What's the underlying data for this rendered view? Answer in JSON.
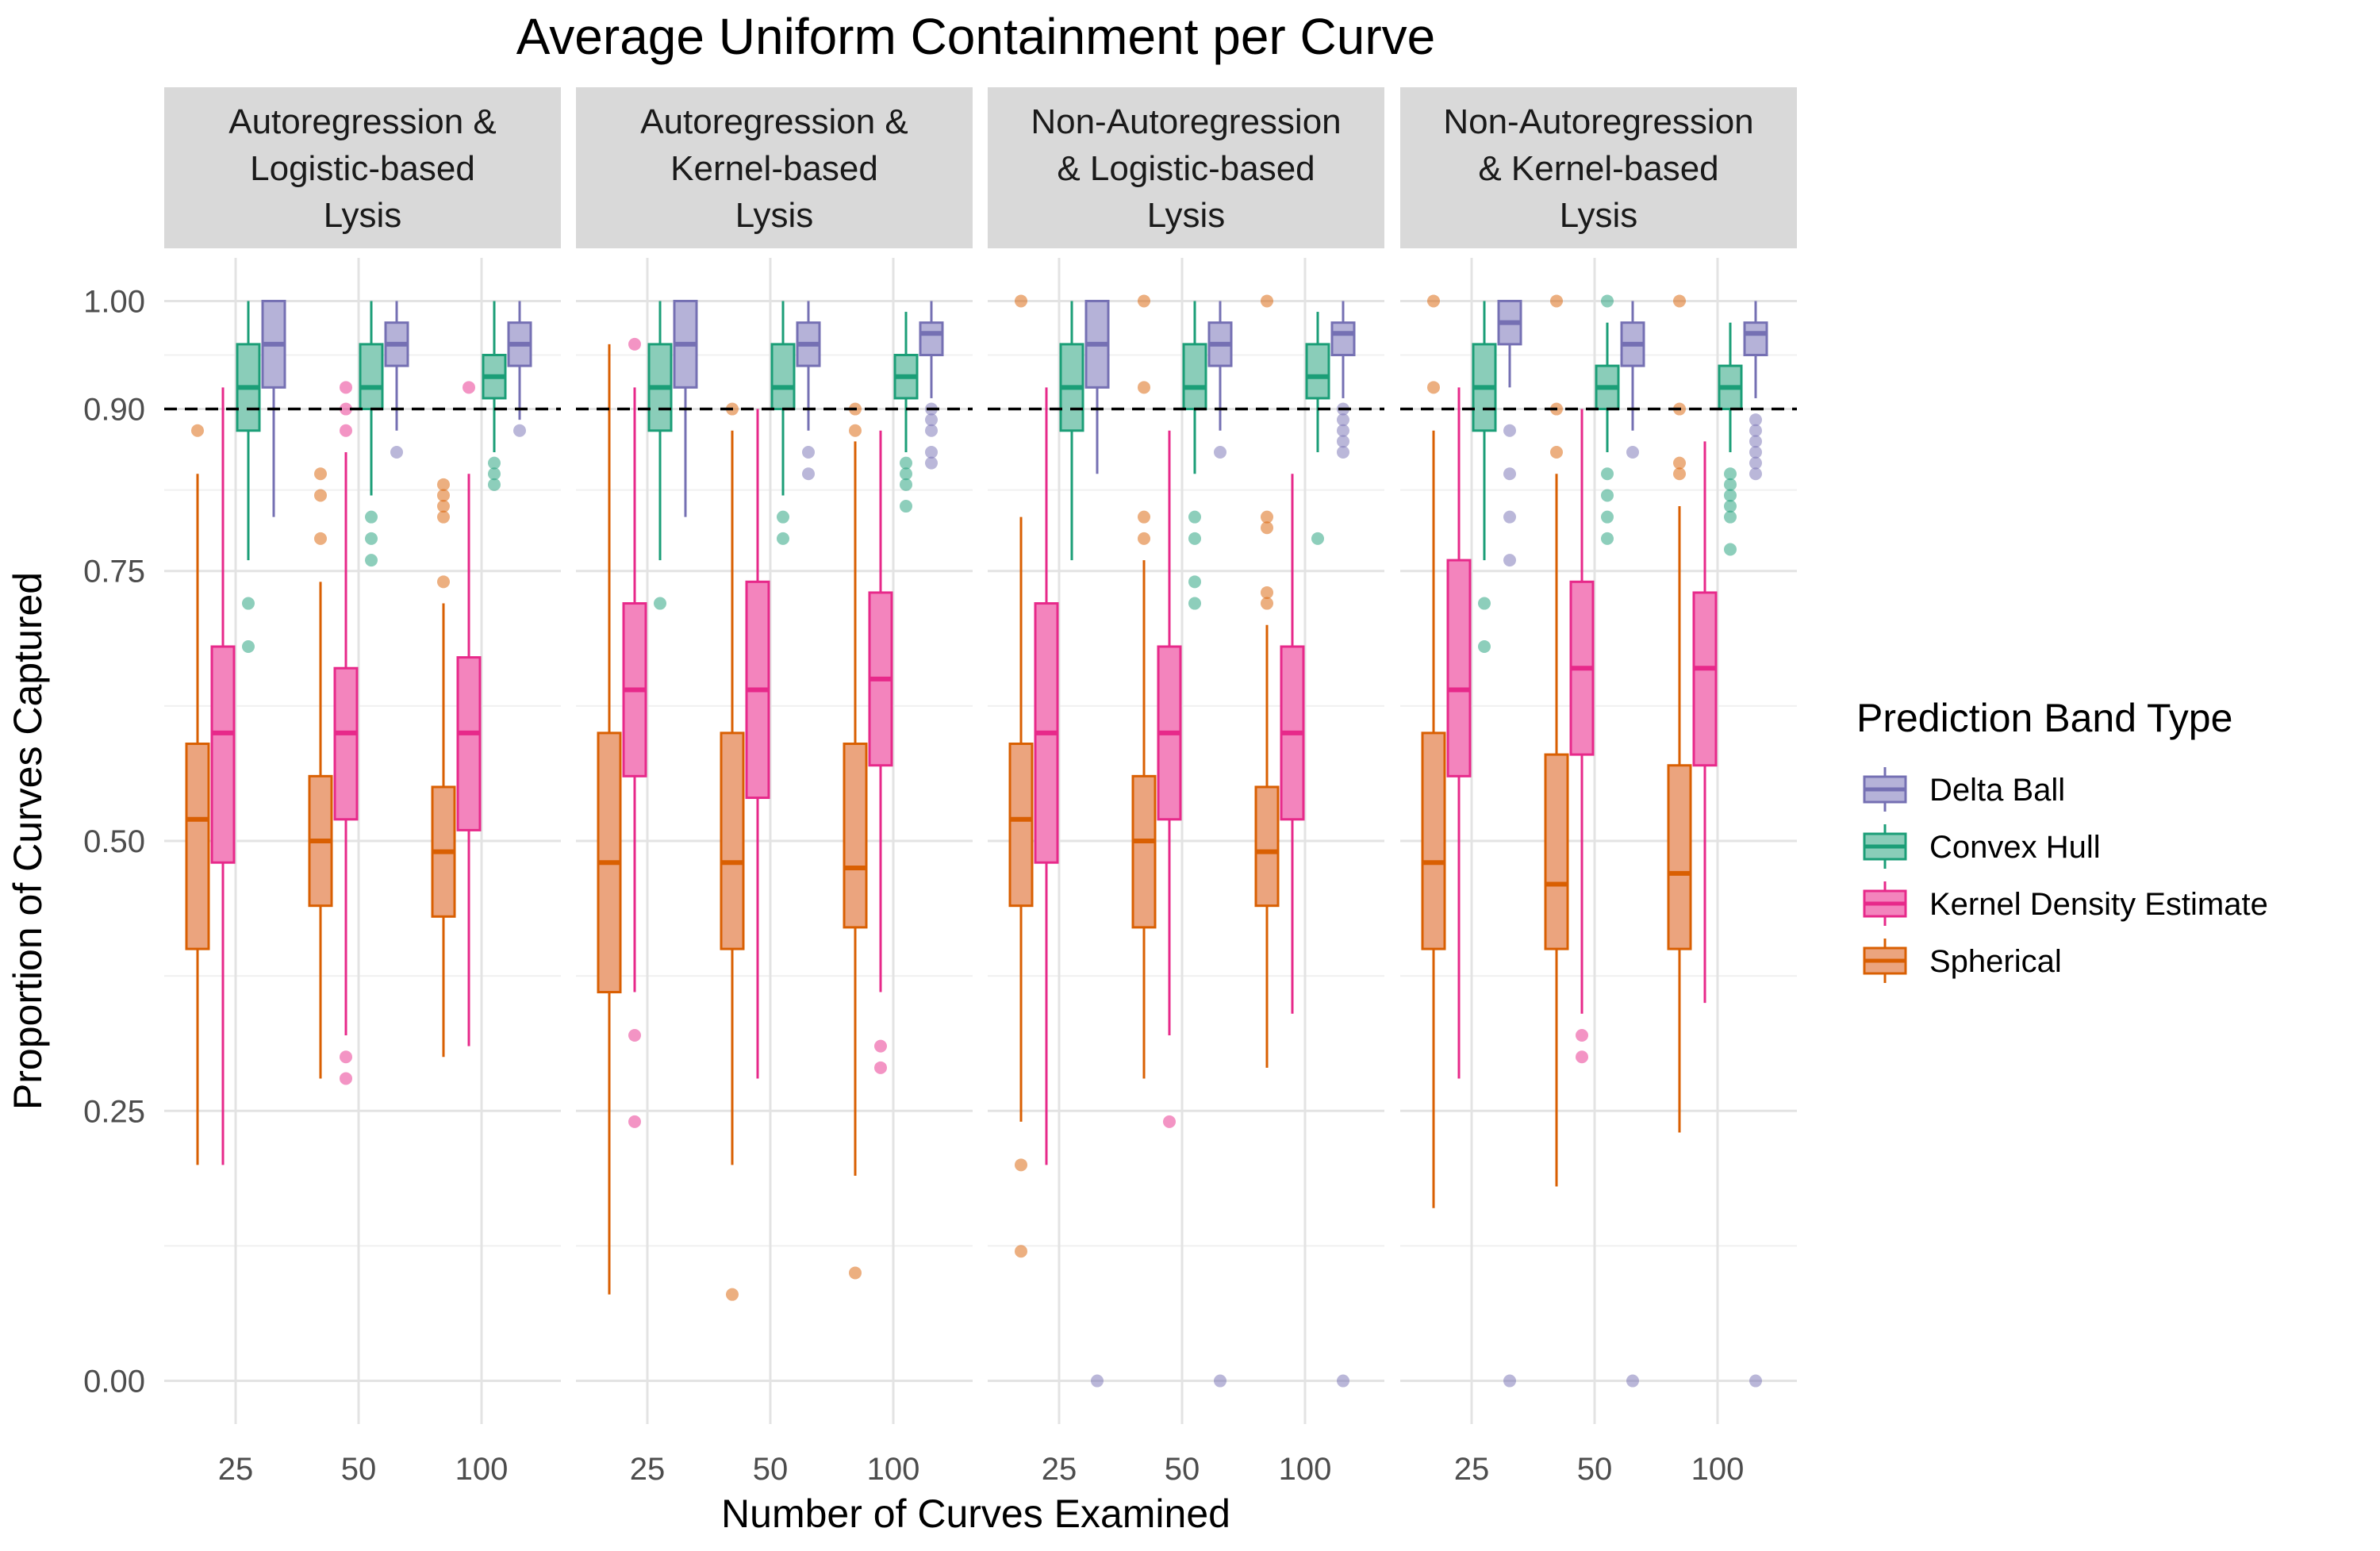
{
  "chart_data": {
    "type": "box",
    "title": "Average Uniform Containment per Curve",
    "xlabel": "Number of Curves Examined",
    "ylabel": "Proportion of Curves Captured",
    "ylim": [
      -0.04,
      1.04
    ],
    "y_ticks": [
      "0.00",
      "0.25",
      "0.50",
      "0.75",
      "0.90",
      "1.00"
    ],
    "x_categories": [
      "25",
      "50",
      "100"
    ],
    "reference_line": {
      "value": 0.9,
      "style": "dashed"
    },
    "legend": {
      "title": "Prediction Band Type",
      "placement": "right",
      "items": [
        "Delta Ball",
        "Convex Hull",
        "Kernel Density Estimate",
        "Spherical"
      ]
    },
    "series": [
      {
        "name": "Spherical",
        "color": "#D95F02",
        "fill": "#EBA47E"
      },
      {
        "name": "Kernel Density Estimate",
        "color": "#E7298A",
        "fill": "#F384BD"
      },
      {
        "name": "Convex Hull",
        "color": "#1B9E77",
        "fill": "#8ACDB9"
      },
      {
        "name": "Delta Ball",
        "color": "#7570B3",
        "fill": "#B5B2D8"
      }
    ],
    "facets": [
      {
        "label_lines": [
          "Autoregression &",
          "Logistic-based",
          "Lysis"
        ],
        "groups": [
          {
            "x": "25",
            "boxes": [
              {
                "series": "Spherical",
                "min": 0.2,
                "q1": 0.4,
                "median": 0.52,
                "q3": 0.59,
                "max": 0.84,
                "outliers": [
                  0.88
                ]
              },
              {
                "series": "Kernel Density Estimate",
                "min": 0.2,
                "q1": 0.48,
                "median": 0.6,
                "q3": 0.68,
                "max": 0.92,
                "outliers": []
              },
              {
                "series": "Convex Hull",
                "min": 0.76,
                "q1": 0.88,
                "median": 0.92,
                "q3": 0.96,
                "max": 1.0,
                "outliers": [
                  0.72,
                  0.68
                ]
              },
              {
                "series": "Delta Ball",
                "min": 0.8,
                "q1": 0.92,
                "median": 0.96,
                "q3": 1.0,
                "max": 1.0,
                "outliers": []
              }
            ]
          },
          {
            "x": "50",
            "boxes": [
              {
                "series": "Spherical",
                "min": 0.28,
                "q1": 0.44,
                "median": 0.5,
                "q3": 0.56,
                "max": 0.74,
                "outliers": [
                  0.84,
                  0.82,
                  0.78
                ]
              },
              {
                "series": "Kernel Density Estimate",
                "min": 0.32,
                "q1": 0.52,
                "median": 0.6,
                "q3": 0.66,
                "max": 0.86,
                "outliers": [
                  0.92,
                  0.9,
                  0.88,
                  0.3,
                  0.28
                ]
              },
              {
                "series": "Convex Hull",
                "min": 0.82,
                "q1": 0.9,
                "median": 0.92,
                "q3": 0.96,
                "max": 1.0,
                "outliers": [
                  0.8,
                  0.78,
                  0.76
                ]
              },
              {
                "series": "Delta Ball",
                "min": 0.88,
                "q1": 0.94,
                "median": 0.96,
                "q3": 0.98,
                "max": 1.0,
                "outliers": [
                  0.86
                ]
              }
            ]
          },
          {
            "x": "100",
            "boxes": [
              {
                "series": "Spherical",
                "min": 0.3,
                "q1": 0.43,
                "median": 0.49,
                "q3": 0.55,
                "max": 0.72,
                "outliers": [
                  0.83,
                  0.82,
                  0.81,
                  0.8,
                  0.74
                ]
              },
              {
                "series": "Kernel Density Estimate",
                "min": 0.31,
                "q1": 0.51,
                "median": 0.6,
                "q3": 0.67,
                "max": 0.84,
                "outliers": [
                  0.92
                ]
              },
              {
                "series": "Convex Hull",
                "min": 0.86,
                "q1": 0.91,
                "median": 0.93,
                "q3": 0.95,
                "max": 1.0,
                "outliers": [
                  0.85,
                  0.84,
                  0.83
                ]
              },
              {
                "series": "Delta Ball",
                "min": 0.89,
                "q1": 0.94,
                "median": 0.96,
                "q3": 0.98,
                "max": 1.0,
                "outliers": [
                  0.88
                ]
              }
            ]
          }
        ]
      },
      {
        "label_lines": [
          "Autoregression &",
          "Kernel-based",
          "Lysis"
        ],
        "groups": [
          {
            "x": "25",
            "boxes": [
              {
                "series": "Spherical",
                "min": 0.08,
                "q1": 0.36,
                "median": 0.48,
                "q3": 0.6,
                "max": 0.96,
                "outliers": []
              },
              {
                "series": "Kernel Density Estimate",
                "min": 0.36,
                "q1": 0.56,
                "median": 0.64,
                "q3": 0.72,
                "max": 0.92,
                "outliers": [
                  0.96,
                  0.32,
                  0.24
                ]
              },
              {
                "series": "Convex Hull",
                "min": 0.76,
                "q1": 0.88,
                "median": 0.92,
                "q3": 0.96,
                "max": 1.0,
                "outliers": [
                  0.72
                ]
              },
              {
                "series": "Delta Ball",
                "min": 0.8,
                "q1": 0.92,
                "median": 0.96,
                "q3": 1.0,
                "max": 1.0,
                "outliers": []
              }
            ]
          },
          {
            "x": "50",
            "boxes": [
              {
                "series": "Spherical",
                "min": 0.2,
                "q1": 0.4,
                "median": 0.48,
                "q3": 0.6,
                "max": 0.88,
                "outliers": [
                  0.9,
                  0.08
                ]
              },
              {
                "series": "Kernel Density Estimate",
                "min": 0.28,
                "q1": 0.54,
                "median": 0.64,
                "q3": 0.74,
                "max": 0.9,
                "outliers": []
              },
              {
                "series": "Convex Hull",
                "min": 0.82,
                "q1": 0.9,
                "median": 0.92,
                "q3": 0.96,
                "max": 1.0,
                "outliers": [
                  0.8,
                  0.78
                ]
              },
              {
                "series": "Delta Ball",
                "min": 0.88,
                "q1": 0.94,
                "median": 0.96,
                "q3": 0.98,
                "max": 1.0,
                "outliers": [
                  0.86,
                  0.84
                ]
              }
            ]
          },
          {
            "x": "100",
            "boxes": [
              {
                "series": "Spherical",
                "min": 0.19,
                "q1": 0.42,
                "median": 0.475,
                "q3": 0.59,
                "max": 0.87,
                "outliers": [
                  0.9,
                  0.88,
                  0.1
                ]
              },
              {
                "series": "Kernel Density Estimate",
                "min": 0.36,
                "q1": 0.57,
                "median": 0.65,
                "q3": 0.73,
                "max": 0.88,
                "outliers": [
                  0.31,
                  0.29
                ]
              },
              {
                "series": "Convex Hull",
                "min": 0.86,
                "q1": 0.91,
                "median": 0.93,
                "q3": 0.95,
                "max": 0.99,
                "outliers": [
                  0.85,
                  0.84,
                  0.83,
                  0.81
                ]
              },
              {
                "series": "Delta Ball",
                "min": 0.91,
                "q1": 0.95,
                "median": 0.97,
                "q3": 0.98,
                "max": 1.0,
                "outliers": [
                  0.9,
                  0.89,
                  0.88,
                  0.86,
                  0.85
                ]
              }
            ]
          }
        ]
      },
      {
        "label_lines": [
          "Non-Autoregression",
          "& Logistic-based",
          "Lysis"
        ],
        "groups": [
          {
            "x": "25",
            "boxes": [
              {
                "series": "Spherical",
                "min": 0.24,
                "q1": 0.44,
                "median": 0.52,
                "q3": 0.59,
                "max": 0.8,
                "outliers": [
                  1.0,
                  0.2,
                  0.12
                ]
              },
              {
                "series": "Kernel Density Estimate",
                "min": 0.2,
                "q1": 0.48,
                "median": 0.6,
                "q3": 0.72,
                "max": 0.92,
                "outliers": []
              },
              {
                "series": "Convex Hull",
                "min": 0.76,
                "q1": 0.88,
                "median": 0.92,
                "q3": 0.96,
                "max": 1.0,
                "outliers": []
              },
              {
                "series": "Delta Ball",
                "min": 0.84,
                "q1": 0.92,
                "median": 0.96,
                "q3": 1.0,
                "max": 1.0,
                "outliers": [
                  0.0
                ]
              }
            ]
          },
          {
            "x": "50",
            "boxes": [
              {
                "series": "Spherical",
                "min": 0.28,
                "q1": 0.42,
                "median": 0.5,
                "q3": 0.56,
                "max": 0.76,
                "outliers": [
                  1.0,
                  0.92,
                  0.8,
                  0.78
                ]
              },
              {
                "series": "Kernel Density Estimate",
                "min": 0.32,
                "q1": 0.52,
                "median": 0.6,
                "q3": 0.68,
                "max": 0.88,
                "outliers": [
                  0.24
                ]
              },
              {
                "series": "Convex Hull",
                "min": 0.84,
                "q1": 0.9,
                "median": 0.92,
                "q3": 0.96,
                "max": 1.0,
                "outliers": [
                  0.8,
                  0.78,
                  0.74,
                  0.72
                ]
              },
              {
                "series": "Delta Ball",
                "min": 0.88,
                "q1": 0.94,
                "median": 0.96,
                "q3": 0.98,
                "max": 1.0,
                "outliers": [
                  0.86,
                  0.0
                ]
              }
            ]
          },
          {
            "x": "100",
            "boxes": [
              {
                "series": "Spherical",
                "min": 0.29,
                "q1": 0.44,
                "median": 0.49,
                "q3": 0.55,
                "max": 0.7,
                "outliers": [
                  1.0,
                  0.8,
                  0.79,
                  0.73,
                  0.72
                ]
              },
              {
                "series": "Kernel Density Estimate",
                "min": 0.34,
                "q1": 0.52,
                "median": 0.6,
                "q3": 0.68,
                "max": 0.84,
                "outliers": []
              },
              {
                "series": "Convex Hull",
                "min": 0.86,
                "q1": 0.91,
                "median": 0.93,
                "q3": 0.96,
                "max": 0.99,
                "outliers": [
                  0.78
                ]
              },
              {
                "series": "Delta Ball",
                "min": 0.91,
                "q1": 0.95,
                "median": 0.97,
                "q3": 0.98,
                "max": 1.0,
                "outliers": [
                  0.9,
                  0.89,
                  0.88,
                  0.87,
                  0.86,
                  0.0
                ]
              }
            ]
          }
        ]
      },
      {
        "label_lines": [
          "Non-Autoregression",
          "& Kernel-based",
          "Lysis"
        ],
        "groups": [
          {
            "x": "25",
            "boxes": [
              {
                "series": "Spherical",
                "min": 0.16,
                "q1": 0.4,
                "median": 0.48,
                "q3": 0.6,
                "max": 0.88,
                "outliers": [
                  1.0,
                  0.92
                ]
              },
              {
                "series": "Kernel Density Estimate",
                "min": 0.28,
                "q1": 0.56,
                "median": 0.64,
                "q3": 0.76,
                "max": 0.92,
                "outliers": []
              },
              {
                "series": "Convex Hull",
                "min": 0.76,
                "q1": 0.88,
                "median": 0.92,
                "q3": 0.96,
                "max": 1.0,
                "outliers": [
                  0.72,
                  0.68
                ]
              },
              {
                "series": "Delta Ball",
                "min": 0.92,
                "q1": 0.96,
                "median": 0.98,
                "q3": 1.0,
                "max": 1.0,
                "outliers": [
                  0.88,
                  0.84,
                  0.8,
                  0.76,
                  0.0
                ]
              }
            ]
          },
          {
            "x": "50",
            "boxes": [
              {
                "series": "Spherical",
                "min": 0.18,
                "q1": 0.4,
                "median": 0.46,
                "q3": 0.58,
                "max": 0.84,
                "outliers": [
                  1.0,
                  0.9,
                  0.86
                ]
              },
              {
                "series": "Kernel Density Estimate",
                "min": 0.34,
                "q1": 0.58,
                "median": 0.66,
                "q3": 0.74,
                "max": 0.9,
                "outliers": [
                  0.32,
                  0.3
                ]
              },
              {
                "series": "Convex Hull",
                "min": 0.86,
                "q1": 0.9,
                "median": 0.92,
                "q3": 0.94,
                "max": 0.98,
                "outliers": [
                  1.0,
                  0.84,
                  0.82,
                  0.8,
                  0.78
                ]
              },
              {
                "series": "Delta Ball",
                "min": 0.88,
                "q1": 0.94,
                "median": 0.96,
                "q3": 0.98,
                "max": 1.0,
                "outliers": [
                  0.86,
                  0.0
                ]
              }
            ]
          },
          {
            "x": "100",
            "boxes": [
              {
                "series": "Spherical",
                "min": 0.23,
                "q1": 0.4,
                "median": 0.47,
                "q3": 0.57,
                "max": 0.81,
                "outliers": [
                  1.0,
                  0.9,
                  0.85,
                  0.84
                ]
              },
              {
                "series": "Kernel Density Estimate",
                "min": 0.35,
                "q1": 0.57,
                "median": 0.66,
                "q3": 0.73,
                "max": 0.87,
                "outliers": []
              },
              {
                "series": "Convex Hull",
                "min": 0.86,
                "q1": 0.9,
                "median": 0.92,
                "q3": 0.94,
                "max": 0.98,
                "outliers": [
                  0.84,
                  0.83,
                  0.82,
                  0.81,
                  0.8,
                  0.77
                ]
              },
              {
                "series": "Delta Ball",
                "min": 0.91,
                "q1": 0.95,
                "median": 0.97,
                "q3": 0.98,
                "max": 1.0,
                "outliers": [
                  0.89,
                  0.88,
                  0.87,
                  0.86,
                  0.85,
                  0.84,
                  0.0
                ]
              }
            ]
          }
        ]
      }
    ]
  }
}
